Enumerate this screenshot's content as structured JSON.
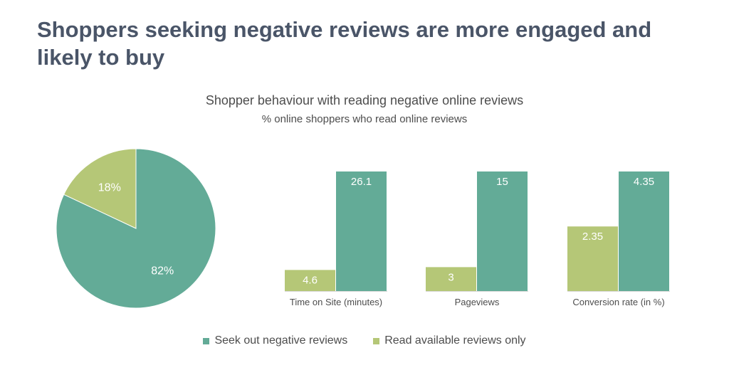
{
  "headline": "Shoppers seeking negative reviews are more engaged and likely to buy",
  "colors": {
    "seek": "#63ab97",
    "read": "#b5c777"
  },
  "chart_data": [
    {
      "type": "pie",
      "title": "",
      "slices": [
        {
          "name": "Seek out negative reviews",
          "value": 82,
          "label": "82%"
        },
        {
          "name": "Read available reviews only",
          "value": 18,
          "label": "18%"
        }
      ]
    },
    {
      "type": "bar",
      "title": "Shopper behaviour with reading negative online reviews",
      "subtitle": "% online shoppers who read online reviews",
      "categories": [
        "Time on Site (minutes)",
        "Pageviews",
        "Conversion rate (in %)"
      ],
      "series": [
        {
          "name": "Read available reviews only",
          "values": [
            4.6,
            3,
            2.35
          ]
        },
        {
          "name": "Seek out negative reviews",
          "values": [
            26.1,
            15,
            4.35
          ]
        }
      ],
      "legend": {
        "position": "bottom",
        "items": [
          "Seek out negative reviews",
          "Read available reviews only"
        ]
      }
    }
  ]
}
